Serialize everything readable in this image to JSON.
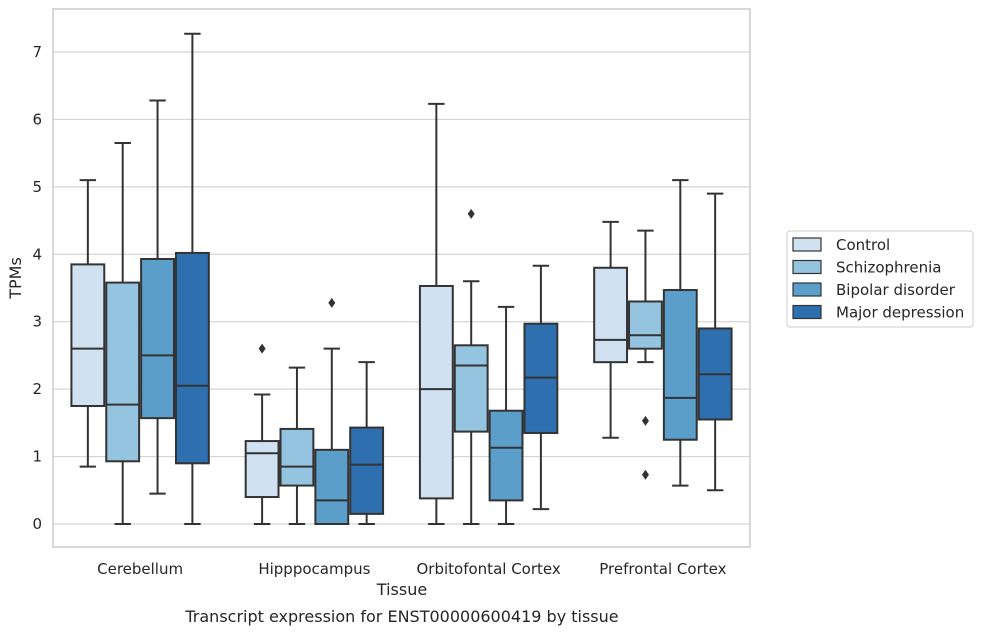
{
  "chart_data": {
    "type": "boxplot",
    "title": "",
    "xlabel": "Tissue",
    "ylabel": "TPMs",
    "caption": "Transcript expression for ENST00000600419 by tissue",
    "ylim": [
      -0.35,
      7.65
    ],
    "yticks": [
      0,
      1,
      2,
      3,
      4,
      5,
      6,
      7
    ],
    "grid": "horizontal",
    "legend_position": "right",
    "categories": [
      "Cerebellum",
      "Hipppocampus",
      "Orbitofontal Cortex",
      "Prefrontal Cortex"
    ],
    "series": [
      {
        "name": "Control",
        "color": "#d0e1f2",
        "boxes": [
          {
            "min": 0.85,
            "q1": 1.75,
            "median": 2.6,
            "q3": 3.85,
            "max": 5.1,
            "outliers": []
          },
          {
            "min": 0.0,
            "q1": 0.4,
            "median": 1.05,
            "q3": 1.23,
            "max": 1.92,
            "outliers": [
              2.6
            ]
          },
          {
            "min": 0.0,
            "q1": 0.38,
            "median": 2.0,
            "q3": 3.53,
            "max": 6.23,
            "outliers": []
          },
          {
            "min": 1.28,
            "q1": 2.4,
            "median": 2.73,
            "q3": 3.8,
            "max": 4.48,
            "outliers": []
          }
        ]
      },
      {
        "name": "Schizophrenia",
        "color": "#94c4df",
        "boxes": [
          {
            "min": 0.0,
            "q1": 0.93,
            "median": 1.77,
            "q3": 3.58,
            "max": 5.65,
            "outliers": []
          },
          {
            "min": 0.0,
            "q1": 0.57,
            "median": 0.85,
            "q3": 1.41,
            "max": 2.32,
            "outliers": []
          },
          {
            "min": 0.0,
            "q1": 1.37,
            "median": 2.35,
            "q3": 2.65,
            "max": 3.6,
            "outliers": [
              4.6
            ]
          },
          {
            "min": 2.4,
            "q1": 2.6,
            "median": 2.8,
            "q3": 3.3,
            "max": 4.35,
            "outliers": [
              1.53,
              0.73
            ]
          }
        ]
      },
      {
        "name": "Bipolar disorder",
        "color": "#5b9ec9",
        "boxes": [
          {
            "min": 0.45,
            "q1": 1.57,
            "median": 2.5,
            "q3": 3.93,
            "max": 6.28,
            "outliers": []
          },
          {
            "min": 0.0,
            "q1": 0.0,
            "median": 0.35,
            "q3": 1.1,
            "max": 2.6,
            "outliers": [
              3.28
            ]
          },
          {
            "min": 0.0,
            "q1": 0.35,
            "median": 1.13,
            "q3": 1.68,
            "max": 3.22,
            "outliers": []
          },
          {
            "min": 0.57,
            "q1": 1.25,
            "median": 1.87,
            "q3": 3.47,
            "max": 5.1,
            "outliers": []
          }
        ]
      },
      {
        "name": "Major depression",
        "color": "#2d6faf",
        "boxes": [
          {
            "min": 0.0,
            "q1": 0.9,
            "median": 2.05,
            "q3": 4.02,
            "max": 7.27,
            "outliers": []
          },
          {
            "min": 0.0,
            "q1": 0.15,
            "median": 0.88,
            "q3": 1.43,
            "max": 2.4,
            "outliers": []
          },
          {
            "min": 0.22,
            "q1": 1.35,
            "median": 2.17,
            "q3": 2.97,
            "max": 3.83,
            "outliers": []
          },
          {
            "min": 0.5,
            "q1": 1.55,
            "median": 2.22,
            "q3": 2.9,
            "max": 4.9,
            "outliers": []
          }
        ]
      }
    ]
  },
  "colors": {
    "grid": "#d4d4d4",
    "frame": "#cccccc",
    "line": "#333333",
    "text": "#262626"
  }
}
